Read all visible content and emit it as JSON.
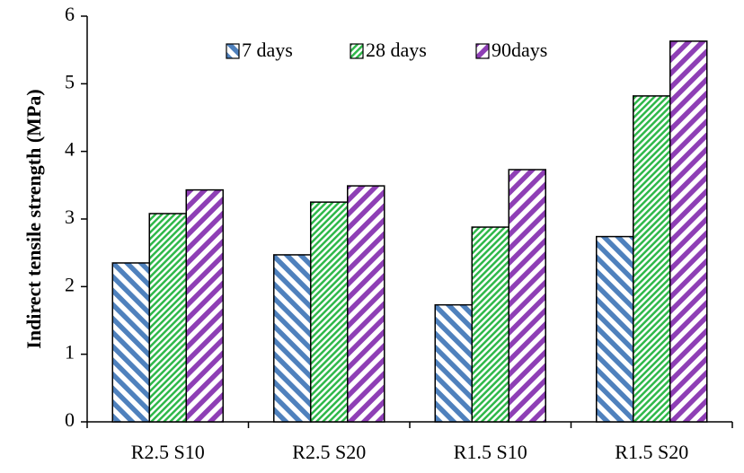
{
  "chart_data": {
    "type": "bar",
    "y_label": "Indirect tensile strength (MPa)",
    "categories": [
      "R2.5 S10",
      "R2.5 S20",
      "R1.5 S10",
      "R1.5 S20"
    ],
    "series": [
      {
        "name": "7 days",
        "color": "#4f81bd",
        "hatch": "backslash",
        "values": [
          2.35,
          2.47,
          1.73,
          2.74
        ]
      },
      {
        "name": "28 days",
        "color": "#2fb84a",
        "hatch": "slash-fine",
        "values": [
          3.08,
          3.25,
          2.88,
          4.82
        ]
      },
      {
        "name": "90days",
        "color": "#8e3fb5",
        "hatch": "slash",
        "values": [
          3.43,
          3.49,
          3.73,
          5.63
        ]
      }
    ],
    "ylim": [
      0,
      6
    ],
    "yticks": [
      0,
      1,
      2,
      3,
      4,
      5,
      6
    ],
    "grid": false,
    "legend": "top"
  }
}
